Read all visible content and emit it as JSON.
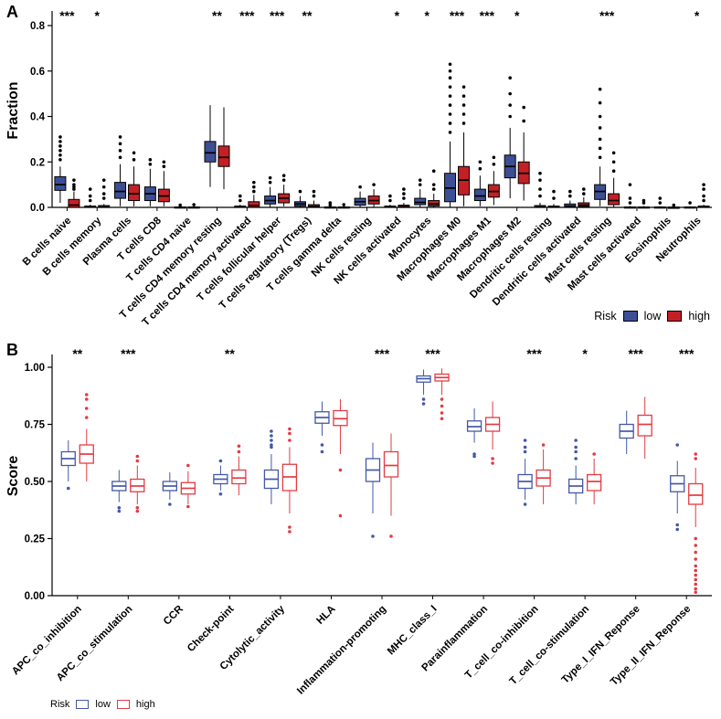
{
  "chart_data": [
    {
      "type": "boxplot",
      "panel": "A",
      "ylabel": "Fraction",
      "ylim": [
        0,
        0.8
      ],
      "yticks": [
        0,
        0.2,
        0.4,
        0.6,
        0.8
      ],
      "ytick_labels": [
        "0.0",
        "0.2",
        "0.4",
        "0.6",
        "0.8"
      ],
      "legend": {
        "title": "Risk",
        "low": "low",
        "high": "high",
        "position": "bottom-right",
        "style": "filled"
      },
      "box_stats_format": "[whisker_low, q1, median, q3, whisker_high]",
      "categories": [
        "B cells naive",
        "B cells memory",
        "Plasma cells",
        "T cells CD8",
        "T cells CD4 naive",
        "T cells CD4 memory resting",
        "T cells CD4 memory activated",
        "T cells follicular helper",
        "T cells regulatory (Tregs)",
        "T cells gamma delta",
        "NK cells resting",
        "NK cells activated",
        "Monocytes",
        "Macrophages M0",
        "Macrophages M1",
        "Macrophages M2",
        "Dendritic cells resting",
        "Dendritic cells activated",
        "Mast cells resting",
        "Mast cells activated",
        "Eosinophils",
        "Neutrophils"
      ],
      "significance": [
        "***",
        "*",
        "",
        "",
        "",
        "**",
        "***",
        "***",
        "**",
        "",
        "",
        "*",
        "*",
        "***",
        "***",
        "*",
        "",
        "",
        "***",
        "",
        "",
        "*"
      ],
      "series": [
        {
          "name": "low",
          "color": "#3D4F94",
          "boxes": [
            [
              0.02,
              0.075,
              0.1,
              0.135,
              0.18
            ],
            [
              0,
              0,
              0.002,
              0.006,
              0.012
            ],
            [
              0.005,
              0.04,
              0.07,
              0.11,
              0.19
            ],
            [
              0.005,
              0.03,
              0.06,
              0.09,
              0.17
            ],
            [
              0,
              0,
              0,
              0.002,
              0.005
            ],
            [
              0.09,
              0.2,
              0.24,
              0.29,
              0.45
            ],
            [
              0,
              0,
              0.002,
              0.006,
              0.012
            ],
            [
              0.002,
              0.015,
              0.03,
              0.05,
              0.09
            ],
            [
              0,
              0.005,
              0.015,
              0.025,
              0.05
            ],
            [
              0,
              0,
              0,
              0.002,
              0.005
            ],
            [
              0,
              0.01,
              0.025,
              0.04,
              0.07
            ],
            [
              0,
              0,
              0.002,
              0.006,
              0.012
            ],
            [
              0.002,
              0.012,
              0.022,
              0.04,
              0.08
            ],
            [
              0,
              0.025,
              0.085,
              0.15,
              0.29
            ],
            [
              0.005,
              0.03,
              0.05,
              0.08,
              0.14
            ],
            [
              0.04,
              0.13,
              0.18,
              0.23,
              0.35
            ],
            [
              0,
              0,
              0.002,
              0.008,
              0.02
            ],
            [
              0,
              0,
              0.005,
              0.015,
              0.03
            ],
            [
              0.005,
              0.035,
              0.07,
              0.1,
              0.18
            ],
            [
              0,
              0,
              0,
              0.002,
              0.006
            ],
            [
              0,
              0,
              0,
              0.002,
              0.005
            ],
            [
              0,
              0,
              0,
              0.002,
              0.005
            ]
          ],
          "outliers": [
            [
              0.21,
              0.23,
              0.25,
              0.27,
              0.29,
              0.31
            ],
            [
              0.03,
              0.05,
              0.08
            ],
            [
              0.22,
              0.25,
              0.28,
              0.31
            ],
            [
              0.19,
              0.21
            ],
            [
              0.01
            ],
            [],
            [
              0.03,
              0.05
            ],
            [
              0.11,
              0.13
            ],
            [
              0.07
            ],
            [
              0.01,
              0.02
            ],
            [
              0.09
            ],
            [
              0.03,
              0.05
            ],
            [
              0.1,
              0.12
            ],
            [
              0.33,
              0.37,
              0.41,
              0.45,
              0.49,
              0.53,
              0.57,
              0.6,
              0.63
            ],
            [
              0.17,
              0.2
            ],
            [
              0.4,
              0.45,
              0.5,
              0.57
            ],
            [
              0.05,
              0.08,
              0.12,
              0.15
            ],
            [
              0.05,
              0.07
            ],
            [
              0.22,
              0.26,
              0.3,
              0.35,
              0.4,
              0.46,
              0.52
            ],
            [
              0.02,
              0.04,
              0.1
            ],
            [
              0.02,
              0.04
            ],
            [
              0.02
            ]
          ]
        },
        {
          "name": "high",
          "color": "#C32026",
          "boxes": [
            [
              0,
              0,
              0.01,
              0.035,
              0.07
            ],
            [
              0,
              0,
              0.002,
              0.008,
              0.015
            ],
            [
              0.005,
              0.03,
              0.06,
              0.1,
              0.18
            ],
            [
              0.005,
              0.025,
              0.05,
              0.08,
              0.16
            ],
            [
              0,
              0,
              0,
              0.002,
              0.005
            ],
            [
              0.08,
              0.18,
              0.22,
              0.27,
              0.44
            ],
            [
              0,
              0,
              0.008,
              0.025,
              0.055
            ],
            [
              0.005,
              0.02,
              0.04,
              0.06,
              0.1
            ],
            [
              0,
              0,
              0.004,
              0.012,
              0.03
            ],
            [
              0,
              0,
              0,
              0.002,
              0.005
            ],
            [
              0,
              0.015,
              0.03,
              0.05,
              0.08
            ],
            [
              0,
              0,
              0.003,
              0.01,
              0.02
            ],
            [
              0,
              0.006,
              0.015,
              0.03,
              0.06
            ],
            [
              0.005,
              0.055,
              0.12,
              0.18,
              0.33
            ],
            [
              0.01,
              0.045,
              0.07,
              0.1,
              0.16
            ],
            [
              0.03,
              0.105,
              0.15,
              0.2,
              0.33
            ],
            [
              0,
              0,
              0.002,
              0.006,
              0.015
            ],
            [
              0,
              0.004,
              0.01,
              0.02,
              0.045
            ],
            [
              0,
              0.012,
              0.03,
              0.06,
              0.13
            ],
            [
              0,
              0,
              0,
              0.002,
              0.006
            ],
            [
              0,
              0,
              0,
              0.001,
              0.004
            ],
            [
              0,
              0,
              0.002,
              0.006,
              0.012
            ]
          ],
          "outliers": [
            [
              0.08,
              0.09,
              0.1,
              0.12
            ],
            [
              0.04,
              0.06,
              0.09,
              0.12
            ],
            [
              0.21,
              0.24
            ],
            [
              0.18,
              0.2
            ],
            [
              0.012
            ],
            [],
            [
              0.07,
              0.09,
              0.11
            ],
            [
              0.12,
              0.14
            ],
            [
              0.05,
              0.07
            ],
            [
              0.012
            ],
            [
              0.1
            ],
            [
              0.04,
              0.06,
              0.08
            ],
            [
              0.08,
              0.1,
              0.16
            ],
            [
              0.37,
              0.41,
              0.45,
              0.49,
              0.53
            ],
            [
              0.19,
              0.22
            ],
            [
              0.38,
              0.44
            ],
            [
              0.04,
              0.07
            ],
            [
              0.06,
              0.08
            ],
            [
              0.16,
              0.2,
              0.24
            ],
            [
              0.02,
              0.03
            ],
            [
              0.01
            ],
            [
              0.03,
              0.05,
              0.08,
              0.1
            ]
          ]
        }
      ]
    },
    {
      "type": "boxplot",
      "panel": "B",
      "ylabel": "Score",
      "ylim": [
        0,
        1.0
      ],
      "yticks": [
        0,
        0.25,
        0.5,
        0.75,
        1.0
      ],
      "ytick_labels": [
        "0.00",
        "0.25",
        "0.50",
        "0.75",
        "1.00"
      ],
      "legend": {
        "title": "Risk",
        "low": "low",
        "high": "high",
        "position": "bottom-left",
        "style": "open"
      },
      "box_stats_format": "[whisker_low, q1, median, q3, whisker_high]",
      "categories": [
        "APC_co_inhibition",
        "APC_co_stimulation",
        "CCR",
        "Check-point",
        "Cytolytic_activity",
        "HLA",
        "Inflammation-promoting",
        "MHC_class_I",
        "Parainflammation",
        "T_cell_co-inhibition",
        "T_cell_co-stimulation",
        "Type_I_IFN_Reponse",
        "Type_II_IFN_Reponse"
      ],
      "significance": [
        "**",
        "***",
        "",
        "**",
        "",
        "",
        "***",
        "***",
        "",
        "***",
        "*",
        "***",
        "***"
      ],
      "series": [
        {
          "name": "low",
          "color": "#4458A8",
          "boxes": [
            [
              0.5,
              0.57,
              0.6,
              0.63,
              0.68
            ],
            [
              0.41,
              0.46,
              0.48,
              0.5,
              0.55
            ],
            [
              0.42,
              0.46,
              0.48,
              0.5,
              0.54
            ],
            [
              0.46,
              0.49,
              0.51,
              0.53,
              0.57
            ],
            [
              0.4,
              0.47,
              0.51,
              0.55,
              0.62
            ],
            [
              0.7,
              0.755,
              0.78,
              0.805,
              0.85
            ],
            [
              0.36,
              0.5,
              0.55,
              0.6,
              0.67
            ],
            [
              0.88,
              0.935,
              0.95,
              0.962,
              0.99
            ],
            [
              0.67,
              0.72,
              0.74,
              0.765,
              0.82
            ],
            [
              0.42,
              0.47,
              0.5,
              0.53,
              0.6
            ],
            [
              0.4,
              0.45,
              0.48,
              0.51,
              0.57
            ],
            [
              0.62,
              0.69,
              0.72,
              0.75,
              0.81
            ],
            [
              0.36,
              0.455,
              0.49,
              0.525,
              0.59
            ]
          ],
          "outliers": [
            [
              0.47
            ],
            [
              0.385,
              0.37
            ],
            [
              0.4
            ],
            [
              0.445,
              0.59
            ],
            [
              0.65,
              0.66,
              0.68,
              0.7,
              0.72
            ],
            [
              0.63,
              0.66
            ],
            [
              0.26
            ],
            [
              0.86,
              0.84
            ],
            [
              0.62,
              0.61
            ],
            [
              0.4,
              0.63,
              0.65,
              0.68
            ],
            [
              0.6,
              0.63,
              0.65,
              0.68
            ],
            [],
            [
              0.31,
              0.29,
              0.66
            ]
          ]
        },
        {
          "name": "high",
          "color": "#E23B43",
          "boxes": [
            [
              0.5,
              0.58,
              0.62,
              0.66,
              0.73
            ],
            [
              0.4,
              0.455,
              0.48,
              0.51,
              0.57
            ],
            [
              0.4,
              0.445,
              0.47,
              0.495,
              0.545
            ],
            [
              0.44,
              0.49,
              0.515,
              0.55,
              0.61
            ],
            [
              0.36,
              0.46,
              0.52,
              0.575,
              0.65
            ],
            [
              0.62,
              0.745,
              0.775,
              0.81,
              0.86
            ],
            [
              0.35,
              0.52,
              0.57,
              0.63,
              0.71
            ],
            [
              0.88,
              0.94,
              0.955,
              0.97,
              0.995
            ],
            [
              0.64,
              0.72,
              0.75,
              0.78,
              0.85
            ],
            [
              0.4,
              0.48,
              0.515,
              0.55,
              0.64
            ],
            [
              0.4,
              0.46,
              0.5,
              0.53,
              0.6
            ],
            [
              0.6,
              0.7,
              0.75,
              0.79,
              0.87
            ],
            [
              0.3,
              0.4,
              0.44,
              0.49,
              0.56
            ]
          ],
          "outliers": [
            [
              0.78,
              0.82,
              0.86,
              0.88
            ],
            [
              0.37,
              0.385,
              0.59,
              0.61
            ],
            [
              0.39,
              0.57
            ],
            [
              0.63,
              0.655
            ],
            [
              0.28,
              0.3,
              0.68,
              0.71,
              0.73
            ],
            [
              0.55,
              0.35
            ],
            [
              0.26
            ],
            [
              0.86,
              0.83,
              0.8,
              0.775
            ],
            [
              0.6,
              0.58
            ],
            [
              0.66
            ],
            [
              0.62
            ],
            [],
            [
              0.6,
              0.62,
              0.25,
              0.22,
              0.19,
              0.16,
              0.13,
              0.11,
              0.09,
              0.07,
              0.05,
              0.03,
              0.015
            ]
          ]
        }
      ]
    }
  ]
}
